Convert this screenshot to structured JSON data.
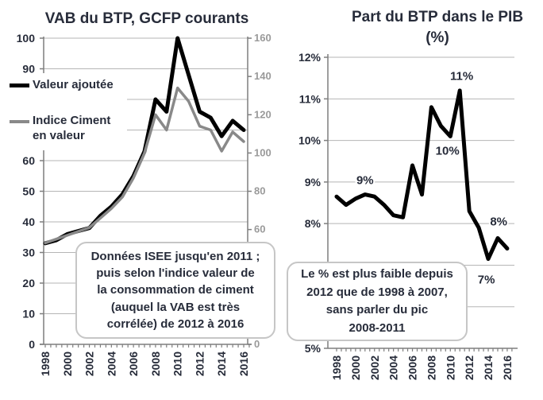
{
  "page": {
    "background": "#ffffff"
  },
  "colors": {
    "grid": "#b5b5b5",
    "axis": "#7f7f7f",
    "text_dark": "#272c3a",
    "text_gray": "#9a9a9a",
    "series_black": "#000000",
    "series_gray": "#898989",
    "callout_border": "#c6c6c6"
  },
  "chart_data": [
    {
      "type": "line",
      "title": "VAB du BTP, GCFP courants",
      "x_years": [
        1998,
        1999,
        2000,
        2001,
        2002,
        2003,
        2004,
        2005,
        2006,
        2007,
        2008,
        2009,
        2010,
        2011,
        2012,
        2013,
        2014,
        2015,
        2016
      ],
      "x_tick_label_years": [
        1998,
        2000,
        2002,
        2004,
        2006,
        2008,
        2010,
        2012,
        2014,
        2016
      ],
      "left_axis": {
        "min": 0,
        "max": 100,
        "step": 10
      },
      "right_axis": {
        "min": 0,
        "max": 160,
        "step": 20
      },
      "grid": true,
      "legend_position": "left-inside",
      "series": [
        {
          "name": "Valeur ajoutée",
          "axis": "left",
          "color": "#000000",
          "width": 5,
          "values": [
            33,
            34,
            36,
            37,
            38,
            42,
            45,
            49,
            55,
            63,
            80,
            76,
            100,
            88,
            76,
            74,
            68,
            73,
            70
          ]
        },
        {
          "name": "Indice Ciment en valeur",
          "axis": "right",
          "color": "#898989",
          "width": 3.5,
          "values": [
            53,
            55,
            57,
            59,
            61,
            66,
            71,
            77,
            87,
            100,
            120,
            112,
            134,
            127,
            114,
            112,
            101,
            111,
            106
          ]
        }
      ],
      "callout": "Données ISEE jusqu'en 2011 ;\npuis selon l'indice valeur de\nla consommation de ciment\n(auquel la VAB est très\ncorrélée) de 2012 à 2016"
    },
    {
      "type": "line",
      "title": "Part du BTP dans le PIB\n(%)",
      "x_years": [
        1998,
        1999,
        2000,
        2001,
        2002,
        2003,
        2004,
        2005,
        2006,
        2007,
        2008,
        2009,
        2010,
        2011,
        2012,
        2013,
        2014,
        2015,
        2016
      ],
      "x_tick_label_years": [
        1998,
        2000,
        2002,
        2004,
        2006,
        2008,
        2010,
        2012,
        2014,
        2016
      ],
      "y_axis": {
        "min": 5,
        "max": 12,
        "step": 1,
        "unit": "%"
      },
      "grid": true,
      "series": [
        {
          "name": "Part du BTP dans le PIB",
          "color": "#000000",
          "width": 5,
          "values": [
            8.65,
            8.45,
            8.6,
            8.7,
            8.65,
            8.45,
            8.2,
            8.15,
            9.4,
            8.7,
            10.8,
            10.35,
            10.1,
            11.2,
            8.3,
            7.9,
            7.15,
            7.65,
            7.4
          ]
        }
      ],
      "point_labels": [
        {
          "text": "9%",
          "year": 2001,
          "value": 9.05
        },
        {
          "text": "10%",
          "year": 2009.7,
          "value": 9.75
        },
        {
          "text": "11%",
          "year": 2011.2,
          "value": 11.55
        },
        {
          "text": "8%",
          "year": 2015.1,
          "value": 8.05
        },
        {
          "text": "7%",
          "year": 2013.8,
          "value": 6.65
        }
      ],
      "callout": "Le % est plus faible depuis\n2012 que de 1998 à 2007,\nsans parler du pic\n2008-2011"
    }
  ]
}
